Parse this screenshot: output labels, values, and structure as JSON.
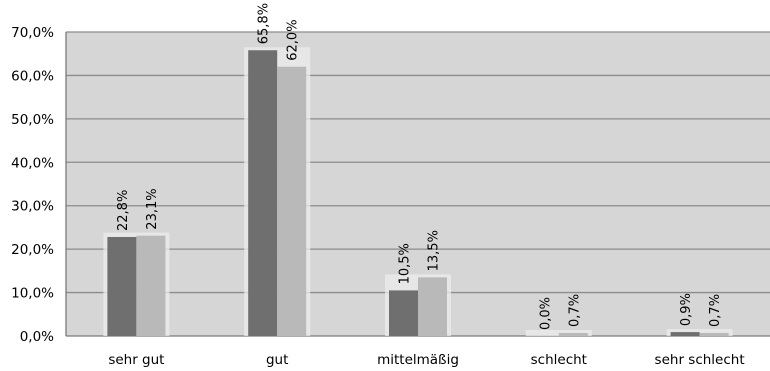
{
  "chart_data": {
    "type": "bar",
    "categories": [
      "sehr gut",
      "gut",
      "mittelmäßig",
      "schlecht",
      "sehr schlecht"
    ],
    "series": [
      {
        "values": [
          22.8,
          65.8,
          10.5,
          0.0,
          0.9
        ],
        "labels": [
          "22,8%",
          "65,8%",
          "10,5%",
          "0,0%",
          "0,9%"
        ],
        "color": "#6f6f6f"
      },
      {
        "values": [
          23.1,
          62.0,
          13.5,
          0.7,
          0.7
        ],
        "labels": [
          "23,1%",
          "62,0%",
          "13,5%",
          "0,7%",
          "0,7%"
        ],
        "color": "#b9b9b9"
      }
    ],
    "yticks": [
      "0,0%",
      "10,0%",
      "20,0%",
      "30,0%",
      "40,0%",
      "50,0%",
      "60,0%",
      "70,0%"
    ],
    "ylim": [
      0,
      70
    ],
    "grid": true,
    "plot_background": "#d6d6d6",
    "title": "",
    "xlabel": "",
    "ylabel": ""
  }
}
